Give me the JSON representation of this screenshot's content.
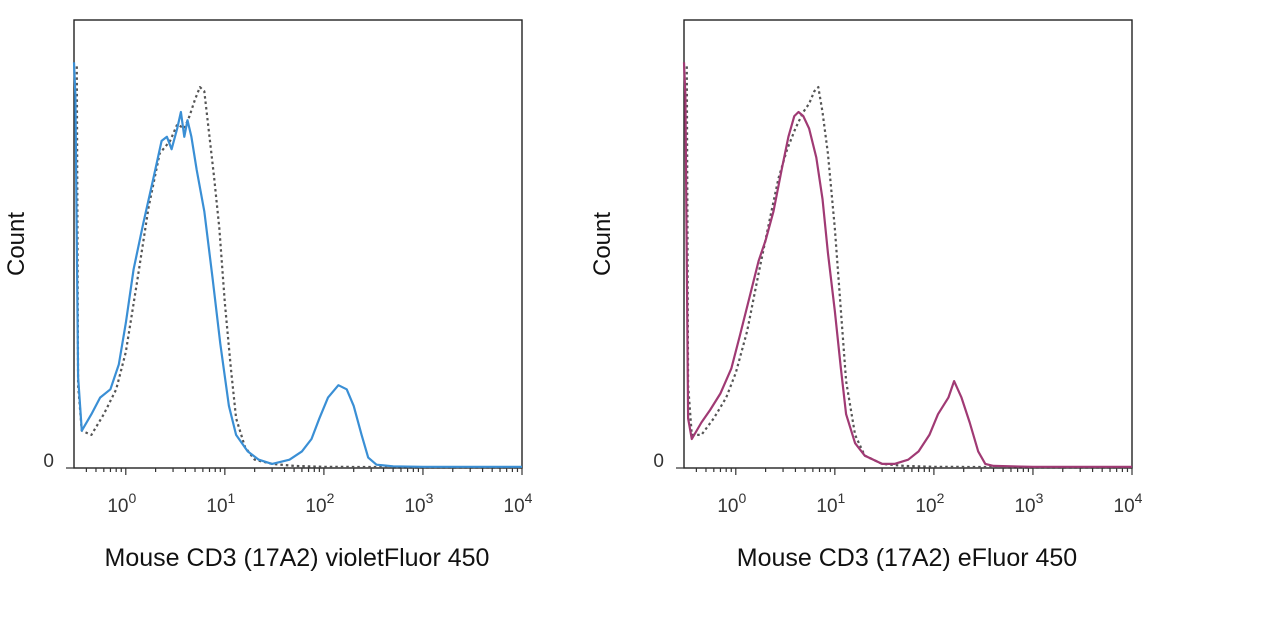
{
  "chart_data": [
    {
      "type": "line",
      "title": "",
      "xlabel": "Mouse CD3 (17A2) violetFluor 450",
      "ylabel": "Count",
      "x_scale": "log",
      "xlim": [
        0.3,
        10000
      ],
      "ylim": [
        0,
        100
      ],
      "x_ticks": [
        {
          "base": "10",
          "exp": "0",
          "value": 1
        },
        {
          "base": "10",
          "exp": "1",
          "value": 10
        },
        {
          "base": "10",
          "exp": "2",
          "value": 100
        },
        {
          "base": "10",
          "exp": "3",
          "value": 1000
        },
        {
          "base": "10",
          "exp": "4",
          "value": 10000
        }
      ],
      "y_ticks": [
        {
          "label": "0",
          "value": 0
        }
      ],
      "grid": false,
      "series": [
        {
          "style": "dotted",
          "color": "#555555",
          "points": [
            [
              0.32,
              97
            ],
            [
              0.33,
              20
            ],
            [
              0.36,
              9
            ],
            [
              0.45,
              8
            ],
            [
              0.6,
              13
            ],
            [
              0.8,
              19
            ],
            [
              1.0,
              28
            ],
            [
              1.3,
              45
            ],
            [
              1.7,
              63
            ],
            [
              2.2,
              76
            ],
            [
              2.8,
              79
            ],
            [
              3.3,
              83
            ],
            [
              3.9,
              82
            ],
            [
              4.4,
              85
            ],
            [
              5.0,
              89
            ],
            [
              5.6,
              92
            ],
            [
              6.2,
              91
            ],
            [
              7.0,
              80
            ],
            [
              7.8,
              70
            ],
            [
              8.8,
              58
            ],
            [
              10,
              40
            ],
            [
              11.5,
              24
            ],
            [
              13,
              12
            ],
            [
              16,
              5
            ],
            [
              20,
              2
            ],
            [
              30,
              1
            ],
            [
              50,
              0.5
            ],
            [
              100,
              0.3
            ],
            [
              1000,
              0.2
            ],
            [
              10000,
              0.2
            ]
          ]
        },
        {
          "style": "solid",
          "color": "#3a8fd5",
          "points": [
            [
              0.3,
              98
            ],
            [
              0.31,
              90
            ],
            [
              0.33,
              22
            ],
            [
              0.36,
              9
            ],
            [
              0.45,
              13
            ],
            [
              0.55,
              17
            ],
            [
              0.7,
              19
            ],
            [
              0.85,
              25
            ],
            [
              1.0,
              35
            ],
            [
              1.2,
              48
            ],
            [
              1.5,
              59
            ],
            [
              1.9,
              70
            ],
            [
              2.3,
              79
            ],
            [
              2.6,
              80
            ],
            [
              2.9,
              77
            ],
            [
              3.3,
              82
            ],
            [
              3.6,
              86
            ],
            [
              3.9,
              80
            ],
            [
              4.2,
              84
            ],
            [
              4.6,
              80
            ],
            [
              5.2,
              72
            ],
            [
              6.2,
              62
            ],
            [
              7.5,
              46
            ],
            [
              9.0,
              30
            ],
            [
              11,
              15
            ],
            [
              13,
              8
            ],
            [
              17,
              4
            ],
            [
              22,
              2
            ],
            [
              30,
              1
            ],
            [
              45,
              2
            ],
            [
              60,
              4
            ],
            [
              75,
              7
            ],
            [
              90,
              12
            ],
            [
              110,
              17
            ],
            [
              140,
              20
            ],
            [
              170,
              19
            ],
            [
              200,
              15
            ],
            [
              240,
              8
            ],
            [
              280,
              2.5
            ],
            [
              340,
              0.8
            ],
            [
              500,
              0.4
            ],
            [
              1000,
              0.3
            ],
            [
              10000,
              0.3
            ]
          ]
        }
      ]
    },
    {
      "type": "line",
      "title": "",
      "xlabel": "Mouse CD3 (17A2) eFluor 450",
      "ylabel": "Count",
      "x_scale": "log",
      "xlim": [
        0.3,
        10000
      ],
      "ylim": [
        0,
        100
      ],
      "x_ticks": [
        {
          "base": "10",
          "exp": "0",
          "value": 1
        },
        {
          "base": "10",
          "exp": "1",
          "value": 10
        },
        {
          "base": "10",
          "exp": "2",
          "value": 100
        },
        {
          "base": "10",
          "exp": "3",
          "value": 1000
        },
        {
          "base": "10",
          "exp": "4",
          "value": 10000
        }
      ],
      "y_ticks": [
        {
          "label": "0",
          "value": 0
        }
      ],
      "grid": false,
      "series": [
        {
          "style": "dotted",
          "color": "#555555",
          "points": [
            [
              0.32,
              97
            ],
            [
              0.33,
              20
            ],
            [
              0.36,
              8
            ],
            [
              0.45,
              8
            ],
            [
              0.6,
              12
            ],
            [
              0.8,
              17
            ],
            [
              1.0,
              23
            ],
            [
              1.3,
              33
            ],
            [
              1.7,
              47
            ],
            [
              2.2,
              60
            ],
            [
              2.7,
              70
            ],
            [
              3.3,
              77
            ],
            [
              4.0,
              82
            ],
            [
              4.8,
              86
            ],
            [
              5.5,
              88
            ],
            [
              6.2,
              91
            ],
            [
              6.8,
              92
            ],
            [
              7.5,
              86
            ],
            [
              8.5,
              76
            ],
            [
              10,
              58
            ],
            [
              11.5,
              38
            ],
            [
              13,
              21
            ],
            [
              16,
              8
            ],
            [
              20,
              3
            ],
            [
              30,
              1
            ],
            [
              50,
              0.5
            ],
            [
              100,
              0.3
            ],
            [
              1000,
              0.2
            ],
            [
              10000,
              0.2
            ]
          ]
        },
        {
          "style": "solid",
          "color": "#a03a74",
          "points": [
            [
              0.3,
              98
            ],
            [
              0.31,
              90
            ],
            [
              0.33,
              12
            ],
            [
              0.36,
              7
            ],
            [
              0.45,
              11
            ],
            [
              0.55,
              14
            ],
            [
              0.7,
              18
            ],
            [
              0.9,
              24
            ],
            [
              1.1,
              32
            ],
            [
              1.4,
              42
            ],
            [
              1.7,
              50
            ],
            [
              2.0,
              55
            ],
            [
              2.4,
              62
            ],
            [
              2.9,
              72
            ],
            [
              3.4,
              80
            ],
            [
              3.9,
              85
            ],
            [
              4.3,
              86
            ],
            [
              4.8,
              85
            ],
            [
              5.5,
              82
            ],
            [
              6.5,
              75
            ],
            [
              7.5,
              65
            ],
            [
              8.5,
              52
            ],
            [
              10,
              38
            ],
            [
              11.5,
              24
            ],
            [
              13,
              13
            ],
            [
              16,
              6
            ],
            [
              20,
              3
            ],
            [
              30,
              1
            ],
            [
              40,
              1
            ],
            [
              55,
              2
            ],
            [
              70,
              4
            ],
            [
              90,
              8
            ],
            [
              110,
              13
            ],
            [
              140,
              17
            ],
            [
              160,
              21
            ],
            [
              190,
              17
            ],
            [
              230,
              11
            ],
            [
              280,
              4
            ],
            [
              330,
              1
            ],
            [
              400,
              0.5
            ],
            [
              1000,
              0.3
            ],
            [
              10000,
              0.3
            ]
          ]
        }
      ]
    }
  ]
}
